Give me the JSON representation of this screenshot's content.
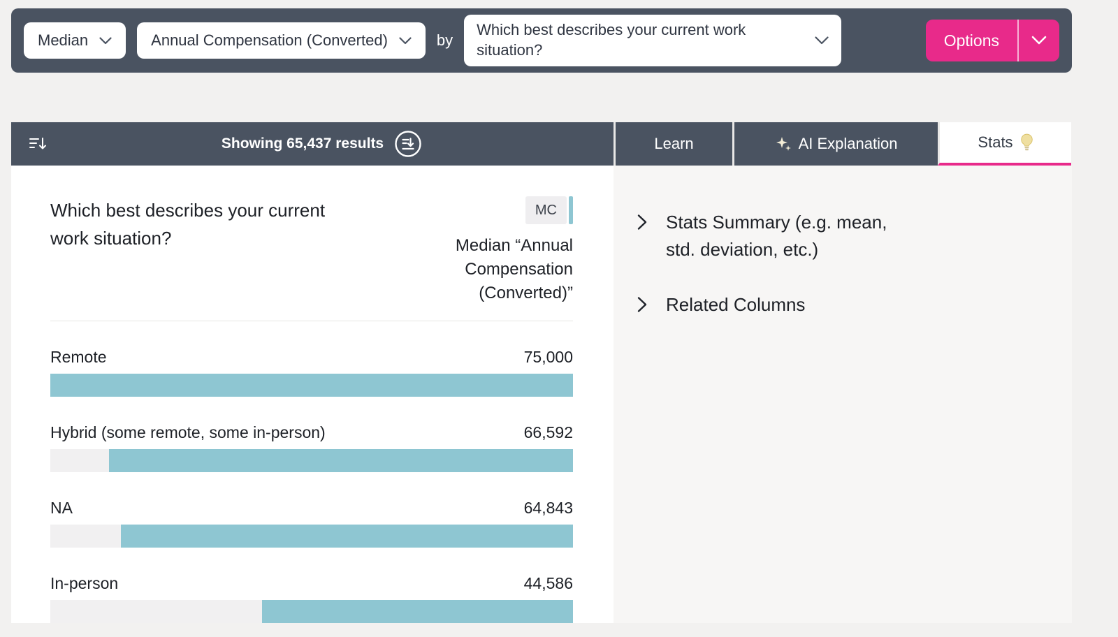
{
  "toolbar": {
    "aggregation": "Median",
    "column": "Annual Compensation (Converted)",
    "by_label": "by",
    "group_by": "Which best describes your current work situation?",
    "options_label": "Options"
  },
  "results_bar": {
    "showing_text": "Showing 65,437 results",
    "tabs": {
      "learn": "Learn",
      "ai": "AI Explanation",
      "stats": "Stats"
    }
  },
  "chart_data": {
    "type": "bar",
    "orientation": "horizontal",
    "title": "Which best describes your current work situation?",
    "badge": "MC",
    "measure_label": "Median “Annual Compensation (Converted)”",
    "categories": [
      "Remote",
      "Hybrid (some remote, some in-person)",
      "NA",
      "In-person"
    ],
    "values": [
      75000,
      66592,
      64843,
      44586
    ],
    "value_labels": [
      "75,000",
      "66,592",
      "64,843",
      "44,586"
    ],
    "max_value": 75000,
    "bar_color": "#8ec6d2",
    "track_color": "#f1f0f1"
  },
  "stats_panel": {
    "items": [
      "Stats Summary (e.g. mean, std. deviation, etc.)",
      "Related Columns"
    ]
  },
  "colors": {
    "accent_pink": "#e82a8a",
    "dark_slate": "#4a5361",
    "teal": "#8ec6d2"
  },
  "icons": {
    "sort": "sort-lines-with-down-arrow",
    "download": "circle-with-down-arrow",
    "sparkle": "four-point-star",
    "bulb": "lightbulb",
    "chevron_down": "v",
    "chevron_right": ">"
  }
}
